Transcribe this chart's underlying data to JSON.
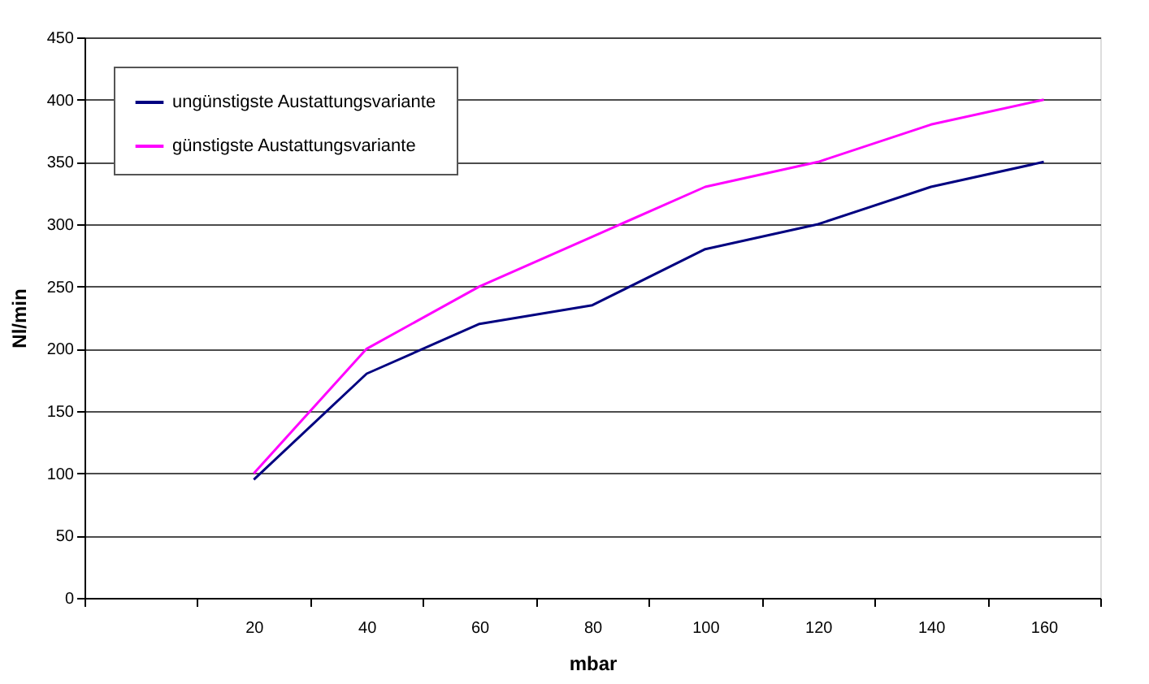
{
  "chart_data": {
    "type": "line",
    "xlabel": "mbar",
    "ylabel": "Nl/min",
    "categories": [
      null,
      "20",
      "40",
      "60",
      "80",
      "100",
      "120",
      "140",
      "160"
    ],
    "series": [
      {
        "name": "ungünstigste Austattungsvariante",
        "color": "#000080",
        "values": [
          null,
          95,
          180,
          220,
          235,
          280,
          300,
          330,
          350
        ]
      },
      {
        "name": "günstigste Austattungsvariante",
        "color": "#ff00ff",
        "values": [
          null,
          100,
          200,
          250,
          290,
          330,
          350,
          380,
          400
        ]
      }
    ],
    "ylim": [
      0,
      450
    ],
    "yticks": [
      0,
      50,
      100,
      150,
      200,
      250,
      300,
      350,
      400,
      450
    ],
    "grid": "y",
    "legend": "top left",
    "marker": "none",
    "line_style": "solid"
  }
}
